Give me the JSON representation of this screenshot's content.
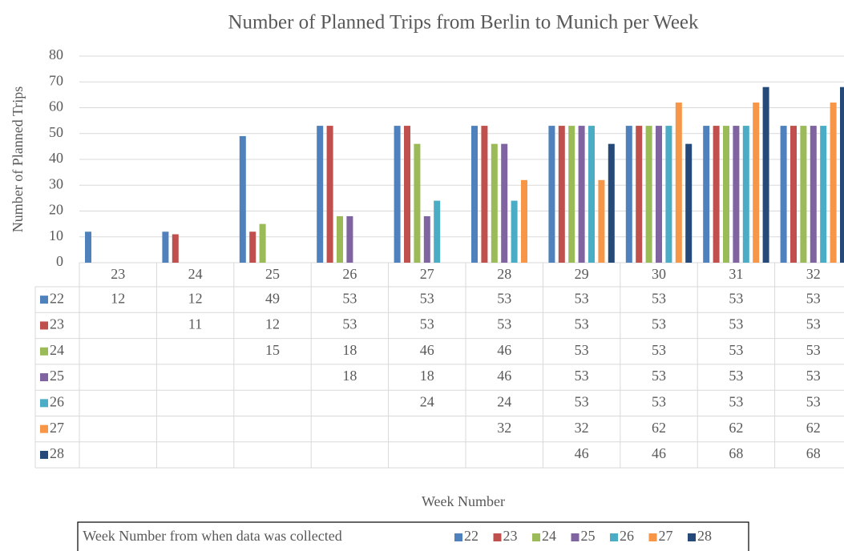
{
  "chart_data": {
    "type": "bar",
    "title": "Number of Planned Trips from Berlin to Munich per Week",
    "ylabel": "Number of Planned Trips",
    "xlabel": "Week Number",
    "legend_title": "Week Number from when data was collected",
    "categories": [
      "23",
      "24",
      "25",
      "26",
      "27",
      "28",
      "29",
      "30",
      "31",
      "32"
    ],
    "series": [
      {
        "name": "22",
        "color": "#4f81bd",
        "values": [
          12,
          12,
          49,
          53,
          53,
          53,
          53,
          53,
          53,
          53
        ]
      },
      {
        "name": "23",
        "color": "#c0504d",
        "values": [
          null,
          11,
          12,
          53,
          53,
          53,
          53,
          53,
          53,
          53
        ]
      },
      {
        "name": "24",
        "color": "#9bbb59",
        "values": [
          null,
          null,
          15,
          18,
          46,
          46,
          53,
          53,
          53,
          53
        ]
      },
      {
        "name": "25",
        "color": "#8064a2",
        "values": [
          null,
          null,
          null,
          18,
          18,
          46,
          53,
          53,
          53,
          53
        ]
      },
      {
        "name": "26",
        "color": "#4bacc6",
        "values": [
          null,
          null,
          null,
          null,
          24,
          24,
          53,
          53,
          53,
          53
        ]
      },
      {
        "name": "27",
        "color": "#f79646",
        "values": [
          null,
          null,
          null,
          null,
          null,
          32,
          32,
          62,
          62,
          62
        ]
      },
      {
        "name": "28",
        "color": "#254a7a",
        "values": [
          null,
          null,
          null,
          null,
          null,
          null,
          46,
          46,
          68,
          68
        ]
      }
    ],
    "ylim": [
      0,
      80
    ],
    "yticks": [
      0,
      10,
      20,
      30,
      40,
      50,
      60,
      70,
      80
    ],
    "grid": true
  }
}
